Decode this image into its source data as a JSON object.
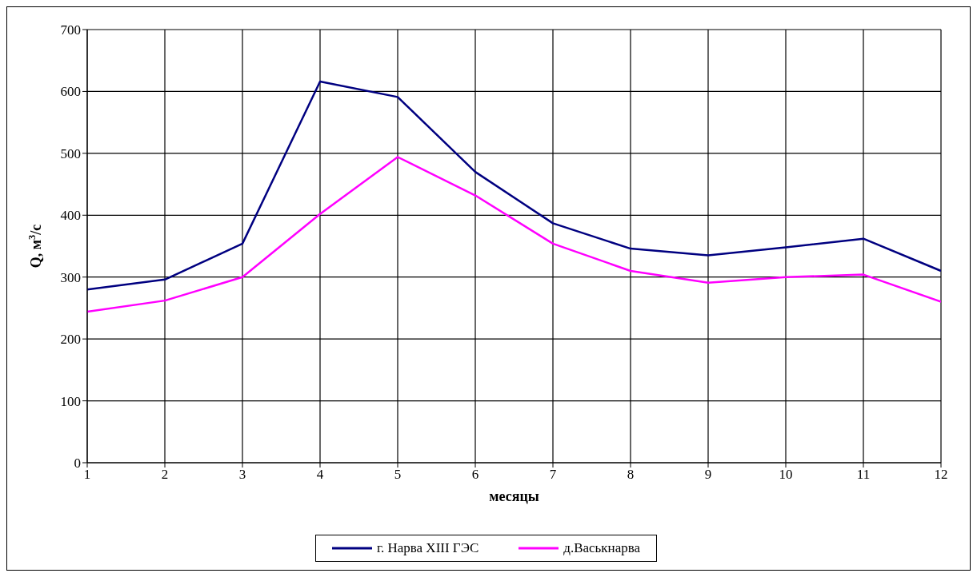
{
  "chart_data": {
    "type": "line",
    "xlabel": "месяцы",
    "ylabel": "Q, м$^{3}$/с",
    "x": [
      1,
      2,
      3,
      4,
      5,
      6,
      7,
      8,
      9,
      10,
      11,
      12
    ],
    "series": [
      {
        "name": "г. Нарва XIII ГЭС",
        "color": "#000080",
        "values": [
          280,
          296,
          354,
          616,
          591,
          470,
          387,
          346,
          335,
          348,
          362,
          310
        ]
      },
      {
        "name": "д.Васькнарва",
        "color": "#ff00ff",
        "values": [
          244,
          262,
          300,
          402,
          494,
          432,
          354,
          310,
          291,
          300,
          304,
          260
        ]
      }
    ],
    "xlim": [
      1,
      12
    ],
    "xticks": [
      1,
      2,
      3,
      4,
      5,
      6,
      7,
      8,
      9,
      10,
      11,
      12
    ],
    "ylim": [
      0,
      700
    ],
    "yticks": [
      0,
      100,
      200,
      300,
      400,
      500,
      600,
      700
    ],
    "grid": true,
    "legend": "bottom",
    "line_style": "solid"
  }
}
